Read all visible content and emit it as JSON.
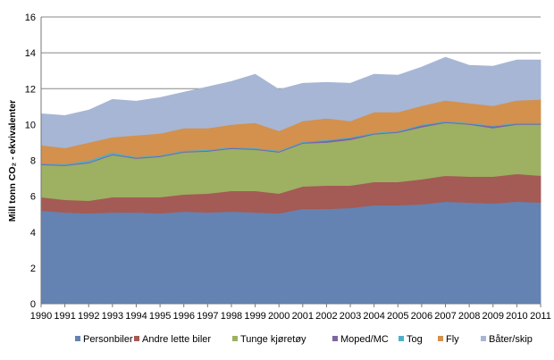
{
  "chart_data": {
    "type": "area",
    "stacked": true,
    "title": "",
    "xlabel": "",
    "ylabel": "Mill tonn CO₂ - ekvivalenter",
    "ylim": [
      0,
      16
    ],
    "yticks": [
      0,
      2,
      4,
      6,
      8,
      10,
      12,
      14,
      16
    ],
    "grid": true,
    "legend_position": "bottom",
    "x": [
      "1990",
      "1991",
      "1992",
      "1993",
      "1994",
      "1995",
      "1996",
      "1997",
      "1998",
      "1999",
      "2000",
      "2001",
      "2002",
      "2003",
      "2004",
      "2005",
      "2006",
      "2007",
      "2008",
      "2009",
      "2010",
      "2011"
    ],
    "series": [
      {
        "name": "Personbiler",
        "color": "#6483B2",
        "values": [
          5.2,
          5.1,
          5.05,
          5.1,
          5.1,
          5.05,
          5.15,
          5.1,
          5.15,
          5.1,
          5.05,
          5.3,
          5.3,
          5.35,
          5.5,
          5.5,
          5.55,
          5.7,
          5.65,
          5.6,
          5.7,
          5.65
        ]
      },
      {
        "name": "Andre lette biler",
        "color": "#A45A55",
        "values": [
          0.75,
          0.7,
          0.7,
          0.85,
          0.85,
          0.9,
          0.95,
          1.05,
          1.15,
          1.2,
          1.1,
          1.25,
          1.3,
          1.25,
          1.3,
          1.3,
          1.4,
          1.45,
          1.45,
          1.5,
          1.55,
          1.5
        ]
      },
      {
        "name": "Tunge kjøretøy",
        "color": "#9EB062",
        "values": [
          1.8,
          1.9,
          2.1,
          2.35,
          2.15,
          2.25,
          2.35,
          2.35,
          2.35,
          2.3,
          2.3,
          2.4,
          2.4,
          2.55,
          2.65,
          2.75,
          2.9,
          2.95,
          2.9,
          2.7,
          2.75,
          2.85
        ]
      },
      {
        "name": "Moped/MC",
        "color": "#7E65A0",
        "values": [
          0.05,
          0.05,
          0.05,
          0.05,
          0.05,
          0.05,
          0.05,
          0.05,
          0.05,
          0.05,
          0.05,
          0.05,
          0.1,
          0.1,
          0.05,
          0.05,
          0.1,
          0.05,
          0.05,
          0.1,
          0.05,
          0.05
        ]
      },
      {
        "name": "Tog",
        "color": "#4FAFC9",
        "values": [
          0.05,
          0.05,
          0.1,
          0.1,
          0.05,
          0.05,
          0.05,
          0.05,
          0.05,
          0.05,
          0.05,
          0.05,
          0.05,
          0.05,
          0.05,
          0.05,
          0.05,
          0.05,
          0.05,
          0.05,
          0.05,
          0.05
        ]
      },
      {
        "name": "Fly",
        "color": "#D3914D",
        "values": [
          1.0,
          0.9,
          1.0,
          0.85,
          1.2,
          1.2,
          1.25,
          1.2,
          1.25,
          1.4,
          1.1,
          1.15,
          1.2,
          0.9,
          1.15,
          1.05,
          1.05,
          1.15,
          1.1,
          1.1,
          1.25,
          1.3
        ]
      },
      {
        "name": "Båter/skip",
        "color": "#A7B6D4",
        "values": [
          1.75,
          1.8,
          1.8,
          2.1,
          1.9,
          2.0,
          2.0,
          2.3,
          2.4,
          2.7,
          2.3,
          2.1,
          2.0,
          2.1,
          2.1,
          2.05,
          2.15,
          2.4,
          2.1,
          2.2,
          2.25,
          2.2
        ]
      }
    ]
  }
}
